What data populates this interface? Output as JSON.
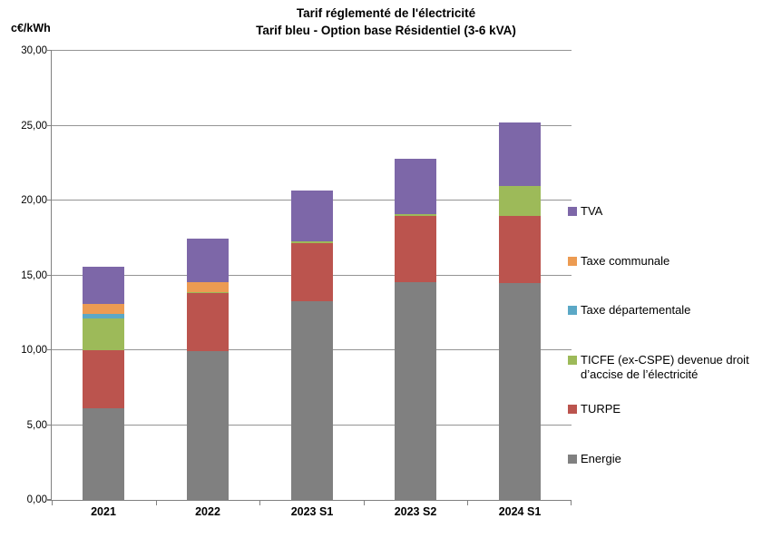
{
  "title": {
    "line1": "Tarif réglementé de l'électricité",
    "line2": "Tarif bleu - Option base Résidentiel (3-6 kVA)"
  },
  "chart_data": {
    "type": "bar",
    "stacked": true,
    "title": "Tarif réglementé de l'électricité — Tarif bleu - Option base Résidentiel (3-6 kVA)",
    "ylabel": "c€/kWh",
    "xlabel": "",
    "grid": true,
    "legend_position": "right",
    "ylim": [
      0,
      30
    ],
    "ytick_step": 5,
    "ytick_labels": [
      "0,00",
      "5,00",
      "10,00",
      "15,00",
      "20,00",
      "25,00",
      "30,00"
    ],
    "categories": [
      "2021",
      "2022",
      "2023 S1",
      "2023 S2",
      "2024 S1"
    ],
    "series": [
      {
        "name": "Energie",
        "color": "#808080",
        "values": [
          6.1,
          9.95,
          13.3,
          14.55,
          14.5
        ]
      },
      {
        "name": "TURPE",
        "color": "#BB544E",
        "values": [
          3.9,
          3.85,
          3.85,
          4.45,
          4.45
        ]
      },
      {
        "name": "TICFE (ex-CSPE) devenue droit d’accise de l’électricité",
        "color": "#9DBA59",
        "values": [
          2.1,
          0.1,
          0.1,
          0.1,
          2.05
        ]
      },
      {
        "name": "Taxe départementale",
        "color": "#5BA8C6",
        "values": [
          0.3,
          0,
          0,
          0,
          0
        ]
      },
      {
        "name": "Taxe communale",
        "color": "#EC9B52",
        "values": [
          0.7,
          0.65,
          0,
          0,
          0
        ]
      },
      {
        "name": "TVA",
        "color": "#7D67A8",
        "values": [
          2.5,
          2.9,
          3.4,
          3.7,
          4.2
        ]
      }
    ],
    "totals": [
      15.6,
      17.45,
      20.65,
      22.8,
      25.2
    ]
  },
  "legend": {
    "items": [
      {
        "label": "TVA",
        "color": "#7D67A8"
      },
      {
        "label": "Taxe communale",
        "color": "#EC9B52"
      },
      {
        "label": "Taxe départementale",
        "color": "#5BA8C6"
      },
      {
        "label": "TICFE (ex-CSPE) devenue droit d’accise de l’électricité",
        "color": "#9DBA59"
      },
      {
        "label": "TURPE",
        "color": "#BB544E"
      },
      {
        "label": "Energie",
        "color": "#808080"
      }
    ]
  }
}
